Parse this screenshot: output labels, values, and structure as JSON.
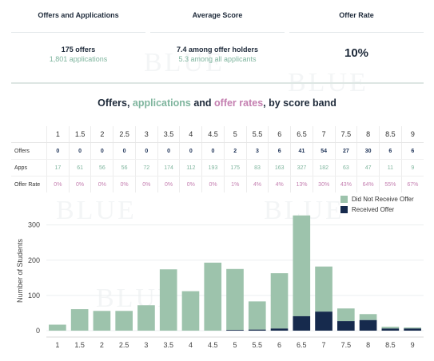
{
  "summary": {
    "headers": [
      "Offers and Applications",
      "Average Score",
      "Offer Rate"
    ],
    "offers_line": "175 offers",
    "apps_line": "1,801 applications",
    "avg_line": "7.4 among offer holders",
    "avg_sub": "5.3 among all applicants",
    "rate": "10%"
  },
  "title": {
    "part1": "Offers, ",
    "part2": "applications",
    "part3": " and ",
    "part4": "offer rates",
    "part5": ", by score band"
  },
  "table": {
    "row_labels": [
      "Offers",
      "Apps",
      "Offer Rate"
    ],
    "bands": [
      "1",
      "1.5",
      "2",
      "2.5",
      "3",
      "3.5",
      "4",
      "4.5",
      "5",
      "5.5",
      "6",
      "6.5",
      "7",
      "7.5",
      "8",
      "8.5",
      "9"
    ],
    "offers": [
      "0",
      "0",
      "0",
      "0",
      "0",
      "0",
      "0",
      "0",
      "2",
      "3",
      "6",
      "41",
      "54",
      "27",
      "30",
      "6",
      "6"
    ],
    "apps": [
      "17",
      "61",
      "56",
      "56",
      "72",
      "174",
      "112",
      "193",
      "175",
      "83",
      "163",
      "327",
      "182",
      "63",
      "47",
      "11",
      "9"
    ],
    "rates": [
      "0%",
      "0%",
      "0%",
      "0%",
      "0%",
      "0%",
      "0%",
      "0%",
      "1%",
      "4%",
      "4%",
      "13%",
      "30%",
      "43%",
      "64%",
      "55%",
      "67%"
    ]
  },
  "colors": {
    "not_received": "#9dc3ac",
    "received": "#162a4d",
    "apps_text": "#7fb59e",
    "rates_text": "#c47fb0"
  },
  "chart_data": {
    "type": "bar",
    "stacked": true,
    "categories": [
      "1",
      "1.5",
      "2",
      "2.5",
      "3",
      "3.5",
      "4",
      "4.5",
      "5",
      "5.5",
      "6",
      "6.5",
      "7",
      "7.5",
      "8",
      "8.5",
      "9"
    ],
    "series": [
      {
        "name": "Did Not Receive Offer",
        "values": [
          17,
          61,
          56,
          56,
          72,
          174,
          112,
          193,
          173,
          80,
          157,
          286,
          128,
          36,
          17,
          5,
          3
        ]
      },
      {
        "name": "Received Offer",
        "values": [
          0,
          0,
          0,
          0,
          0,
          0,
          0,
          0,
          2,
          3,
          6,
          41,
          54,
          27,
          30,
          6,
          6
        ]
      }
    ],
    "ylabel": "Number of Students",
    "yticks": [
      0,
      100,
      200,
      300
    ],
    "ylim": [
      0,
      340
    ],
    "legend_position": "top-right"
  }
}
